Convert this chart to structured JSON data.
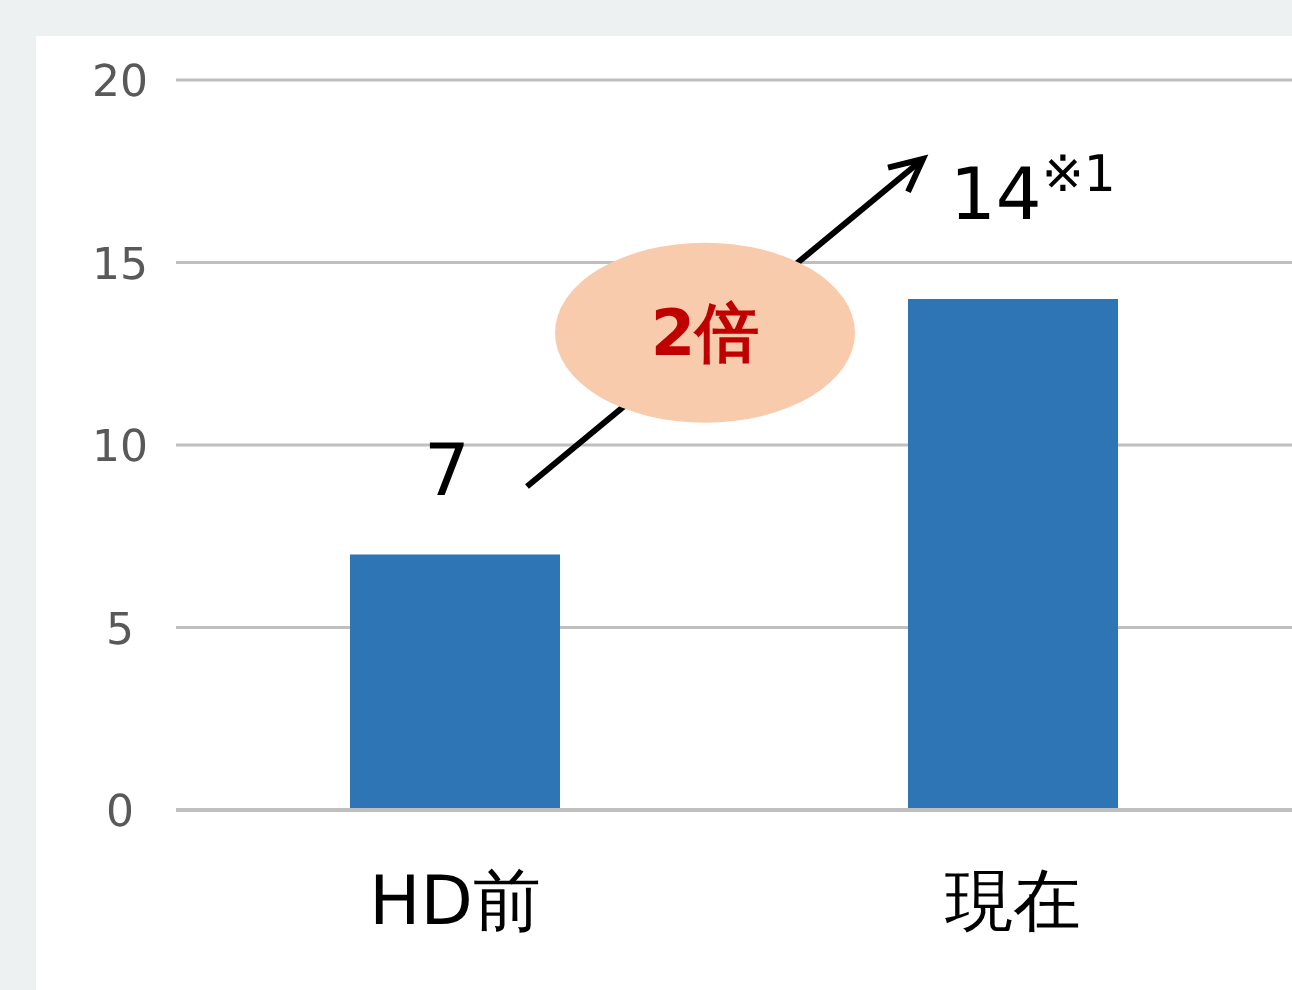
{
  "chart_data": {
    "type": "bar",
    "categories": [
      "HD前",
      "現在"
    ],
    "values": [
      7,
      14
    ],
    "value_labels": [
      "7",
      "14$^{※1}$"
    ],
    "color": "#2e75b6",
    "ylim": [
      0,
      20
    ],
    "yticks": [
      0,
      5,
      10,
      15,
      20
    ],
    "grid": "y",
    "annotations": [
      "2倍"
    ]
  }
}
